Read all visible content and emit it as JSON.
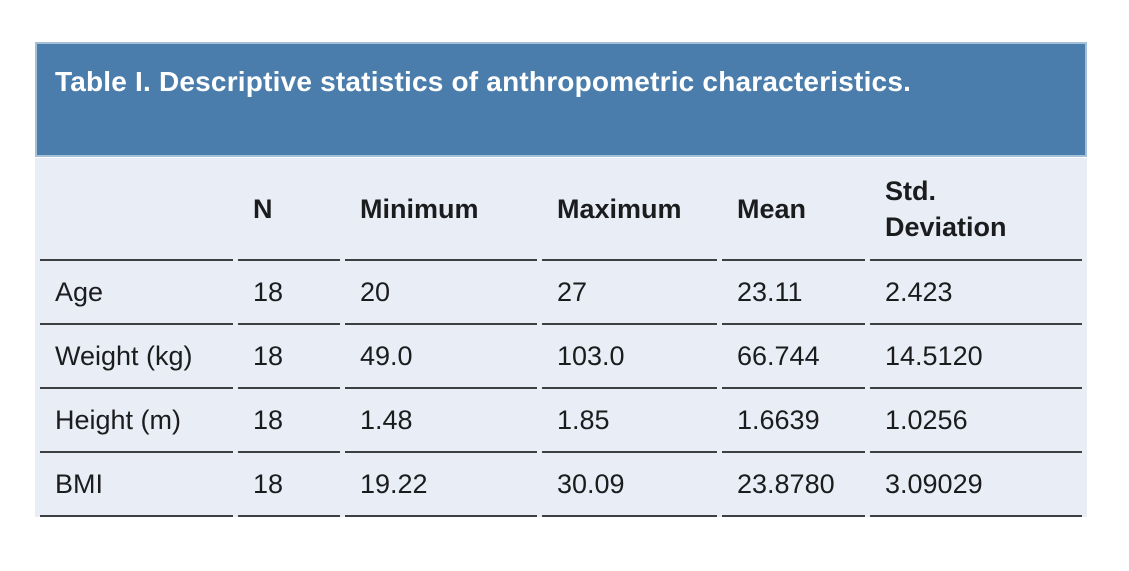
{
  "title": "Table I. Descriptive statistics of anthropometric characteristics.",
  "table": {
    "columns": [
      "",
      "N",
      "Minimum",
      "Maximum",
      "Mean",
      "Std. Deviation"
    ],
    "rows": [
      [
        "Age",
        "18",
        "20",
        "27",
        "23.11",
        "2.423"
      ],
      [
        "Weight (kg)",
        "18",
        "49.0",
        "103.0",
        "66.744",
        "14.5120"
      ],
      [
        "Height (m)",
        "18",
        "1.48",
        "1.85",
        "1.6639",
        "1.0256"
      ],
      [
        "BMI",
        "18",
        "19.22",
        "30.09",
        "23.8780",
        "3.09029"
      ]
    ]
  },
  "colors": {
    "banner_background": "#4a7dab",
    "banner_border": "#a6c0d8",
    "banner_text": "#ffffff",
    "table_background": "#e9edf5",
    "rule_line": "#3c4043",
    "body_text": "#1b1c1e",
    "page_background": "#ffffff"
  }
}
